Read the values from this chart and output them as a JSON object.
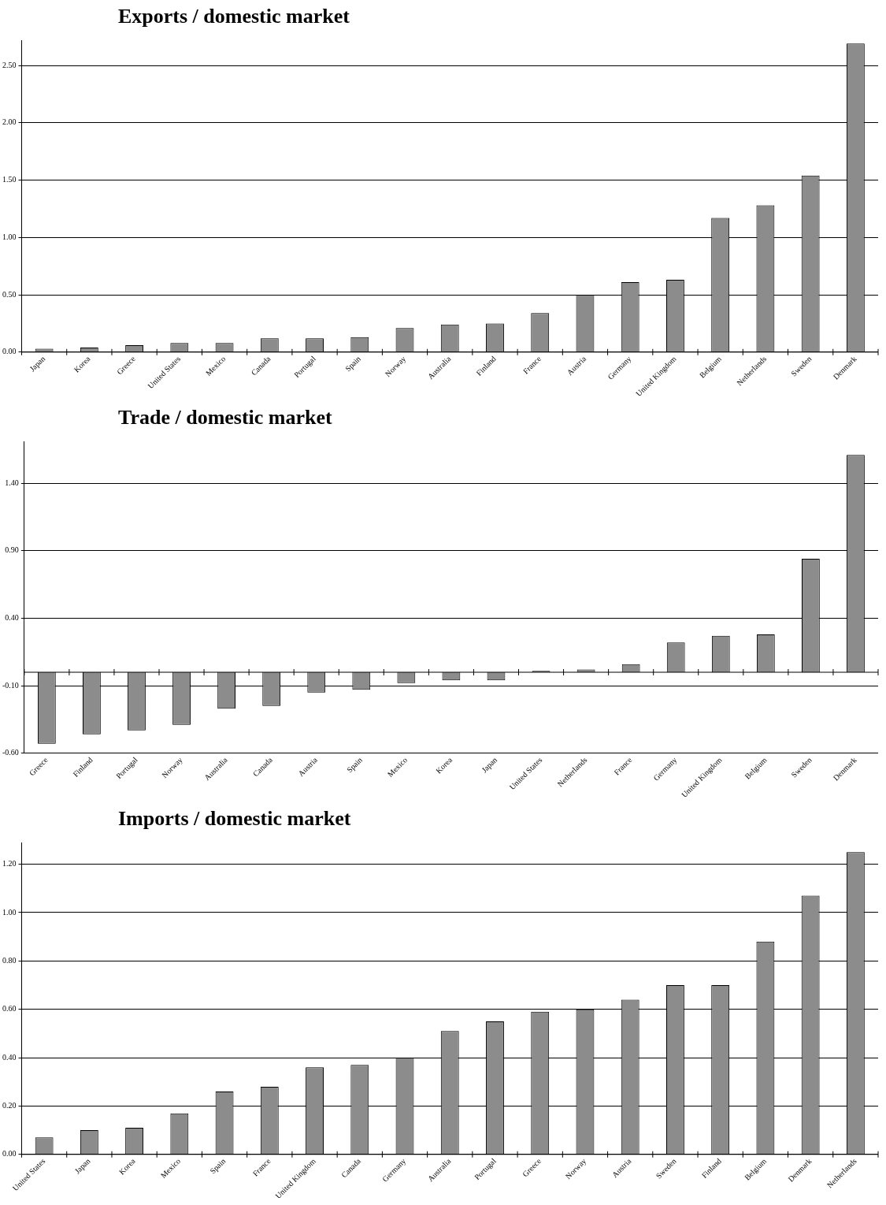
{
  "chart_data": [
    {
      "type": "bar",
      "title": "Exports / domestic market",
      "categories": [
        "Japan",
        "Korea",
        "Greece",
        "United States",
        "Mexico",
        "Canada",
        "Portugal",
        "Spain",
        "Norway",
        "Australia",
        "Finland",
        "France",
        "Austria",
        "Germany",
        "United Kingdom",
        "Belgium",
        "Netherlands",
        "Sweden",
        "Denmark"
      ],
      "values": [
        0.03,
        0.04,
        0.06,
        0.08,
        0.08,
        0.12,
        0.12,
        0.13,
        0.21,
        0.24,
        0.25,
        0.34,
        0.5,
        0.61,
        0.63,
        1.17,
        1.28,
        1.54,
        2.69
      ],
      "color": "#8c8c8c",
      "ylim": [
        0,
        2.72
      ],
      "yticks": [
        {
          "value": 0,
          "label": "0.00"
        },
        {
          "value": 0.5,
          "label": "0.50"
        },
        {
          "value": 1,
          "label": "1.00"
        },
        {
          "value": 1.5,
          "label": "1.50"
        },
        {
          "value": 2,
          "label": "2.00"
        },
        {
          "value": 2.5,
          "label": "2.50"
        }
      ],
      "grid": "y"
    },
    {
      "type": "bar",
      "title": "Trade / domestic market",
      "categories": [
        "Greece",
        "Finland",
        "Portugal",
        "Norway",
        "Australia",
        "Canada",
        "Austria",
        "Spain",
        "Mexico",
        "Korea",
        "Japan",
        "United States",
        "Netherlands",
        "France",
        "Germany",
        "United Kingdom",
        "Belgium",
        "Sweden",
        "Denmark"
      ],
      "values": [
        -0.53,
        -0.46,
        -0.43,
        -0.39,
        -0.27,
        -0.25,
        -0.15,
        -0.13,
        -0.08,
        -0.06,
        -0.06,
        0.01,
        0.02,
        0.06,
        0.22,
        0.27,
        0.28,
        0.84,
        1.61
      ],
      "color": "#8c8c8c",
      "ylim": [
        -0.6,
        1.71
      ],
      "yticks": [
        {
          "value": -0.6,
          "label": "-0.60"
        },
        {
          "value": -0.1,
          "label": "-0.10"
        },
        {
          "value": 0.4,
          "label": "0.40"
        },
        {
          "value": 0.9,
          "label": "0.90"
        },
        {
          "value": 1.4,
          "label": "1.40"
        }
      ],
      "grid": "y"
    },
    {
      "type": "bar",
      "title": "Imports / domestic market",
      "categories": [
        "United States",
        "Japan",
        "Korea",
        "Mexico",
        "Spain",
        "France",
        "United Kingdom",
        "Canada",
        "Germany",
        "Australia",
        "Portugal",
        "Greece",
        "Norway",
        "Austria",
        "Sweden",
        "Finland",
        "Belgium",
        "Denmark",
        "Netherlands"
      ],
      "values": [
        0.07,
        0.1,
        0.11,
        0.17,
        0.26,
        0.28,
        0.36,
        0.37,
        0.4,
        0.51,
        0.55,
        0.59,
        0.6,
        0.64,
        0.7,
        0.7,
        0.88,
        1.07,
        1.25
      ],
      "color": "#8c8c8c",
      "ylim": [
        0,
        1.29
      ],
      "yticks": [
        {
          "value": 0,
          "label": "0.00"
        },
        {
          "value": 0.2,
          "label": "0.20"
        },
        {
          "value": 0.4,
          "label": "0.40"
        },
        {
          "value": 0.6,
          "label": "0.60"
        },
        {
          "value": 0.8,
          "label": "0.80"
        },
        {
          "value": 1,
          "label": "1.00"
        },
        {
          "value": 1.2,
          "label": "1.20"
        }
      ],
      "grid": "y"
    }
  ]
}
